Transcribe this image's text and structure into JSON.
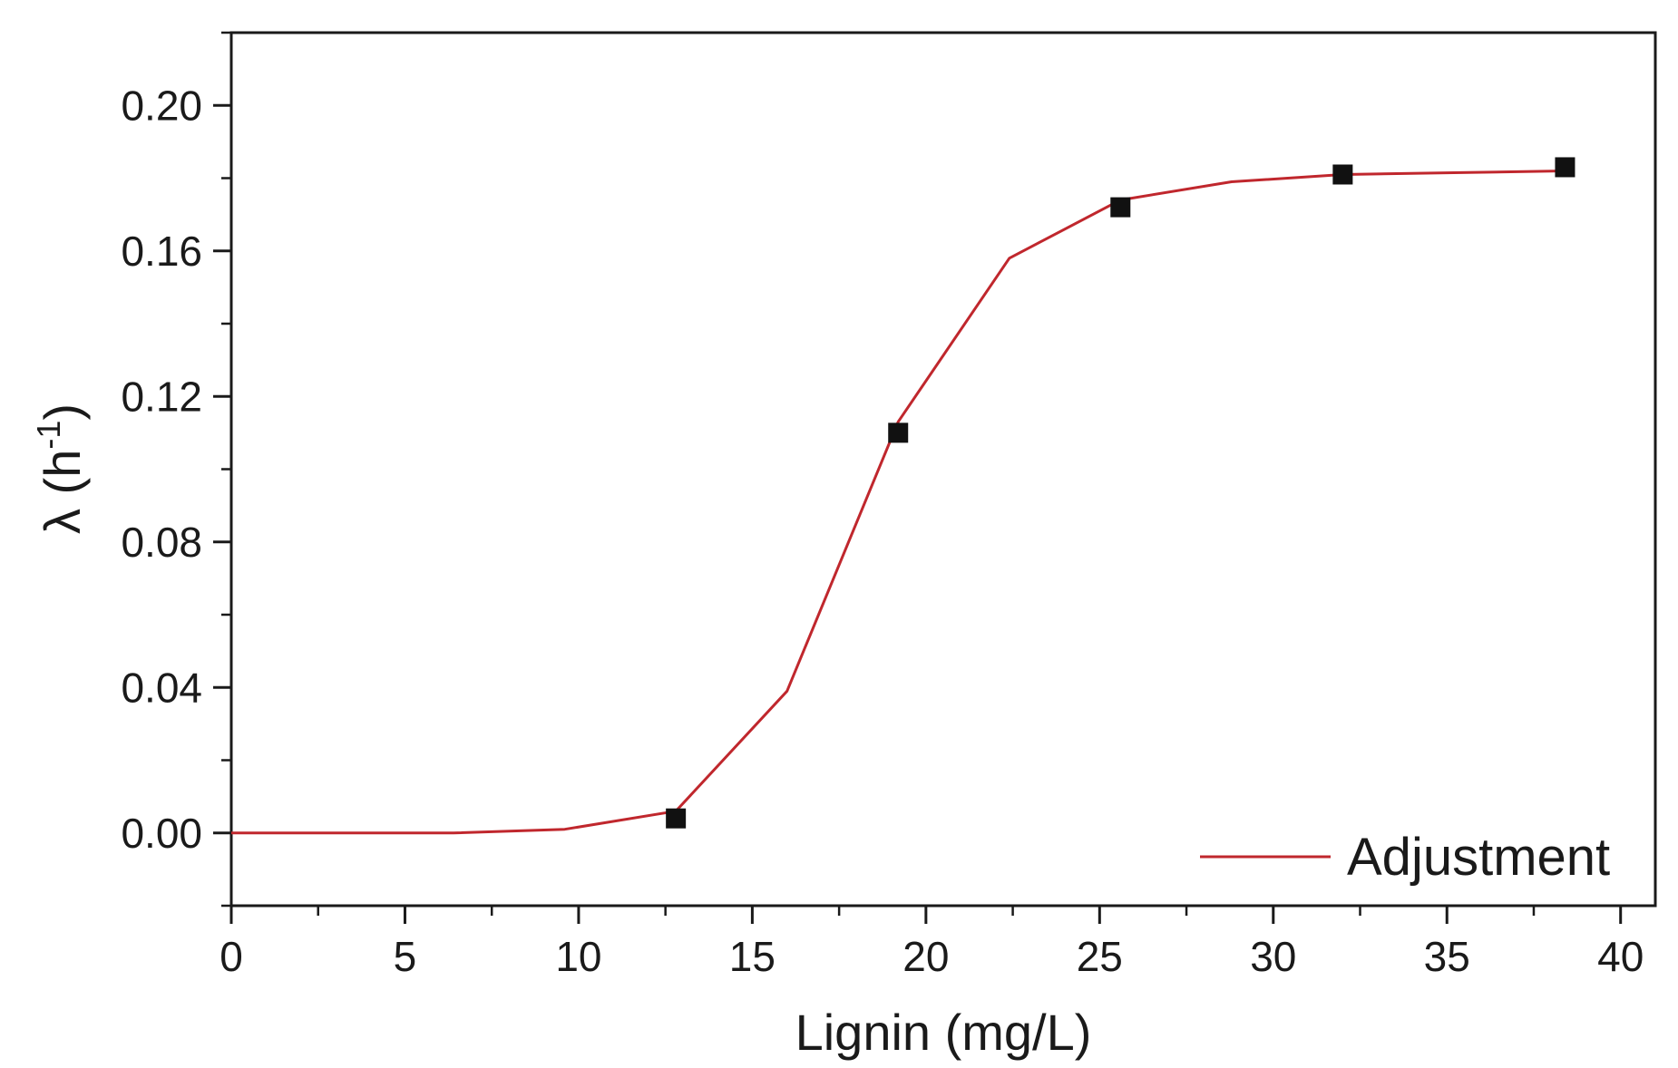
{
  "chart_data": {
    "type": "scatter",
    "title": "",
    "xlabel": "Lignin (mg/L)",
    "ylabel": "λ (h⁻¹)",
    "ylabel_base": "λ (h",
    "ylabel_sup": "-1",
    "ylabel_close": ")",
    "xlim": [
      0,
      41
    ],
    "ylim": [
      -0.02,
      0.22
    ],
    "x_ticks": [
      0,
      5,
      10,
      15,
      20,
      25,
      30,
      35,
      40
    ],
    "x_tick_labels": [
      "0",
      "5",
      "10",
      "15",
      "20",
      "25",
      "30",
      "35",
      "40"
    ],
    "y_ticks": [
      0.0,
      0.04,
      0.08,
      0.12,
      0.16,
      0.2
    ],
    "y_tick_labels": [
      "0.00",
      "0.04",
      "0.08",
      "0.12",
      "0.16",
      "0.20"
    ],
    "grid": false,
    "legend_position": "bottom-right",
    "series": [
      {
        "kind": "markers",
        "marker": "square",
        "color": "#111111",
        "x": [
          12.8,
          19.2,
          25.6,
          32.0,
          38.4
        ],
        "y": [
          0.004,
          0.11,
          0.172,
          0.181,
          0.183
        ]
      },
      {
        "kind": "line",
        "name": "Adjustment",
        "color": "#c0272d",
        "x": [
          0,
          3.2,
          6.4,
          9.6,
          12.8,
          16.0,
          19.2,
          22.4,
          25.6,
          28.8,
          32.0,
          35.2,
          38.4
        ],
        "y": [
          0.0,
          0.0,
          0.0,
          0.001,
          0.006,
          0.039,
          0.113,
          0.158,
          0.174,
          0.179,
          0.181,
          0.1815,
          0.182
        ]
      }
    ]
  }
}
